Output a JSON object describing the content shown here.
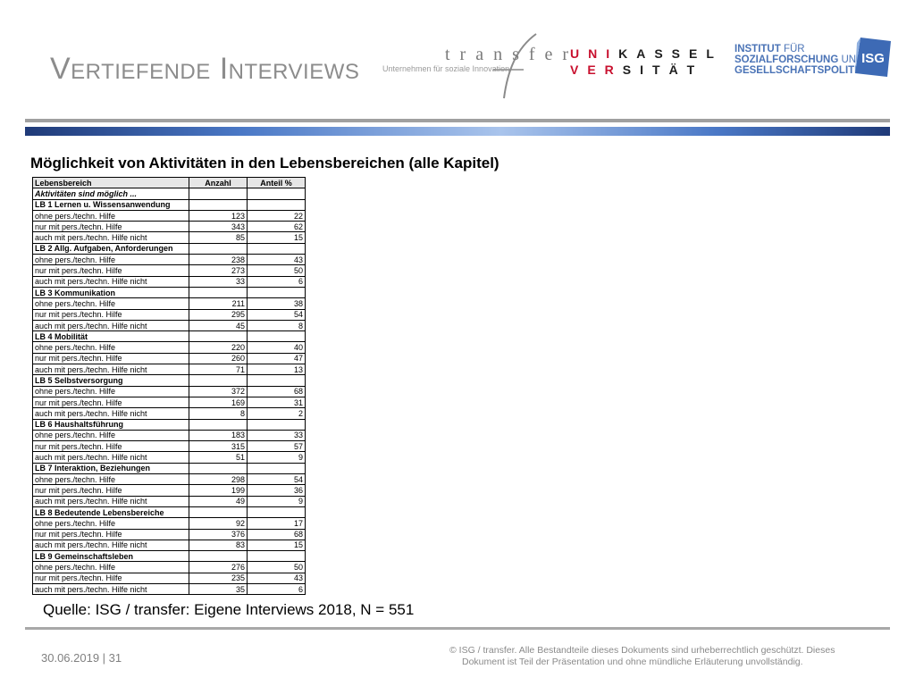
{
  "header": {
    "title": "Vertiefende Interviews",
    "transfer": {
      "word": "transfer",
      "sub": "Unternehmen für soziale Innovation"
    },
    "unikassel": {
      "line1": "UNIKASSEL",
      "line2": "VERSITÄT"
    },
    "institute": {
      "line1_a": "INSTITUT",
      "line1_b": " FÜR",
      "line2": "SOZIALFORSCHUNG",
      "line2_b": " UND",
      "line3": "GESELLSCHAFTSPOLITIK"
    },
    "badge": "ISG",
    "colors": {
      "title_gray": "#8c8c8c",
      "uk_red": "#c8102e",
      "isg_blue": "#4a73b6"
    }
  },
  "subtitle": "Möglichkeit von Aktivitäten in den Lebensbereichen (alle Kapitel)",
  "table": {
    "headers": [
      "Lebensbereich",
      "Anzahl",
      "Anteil %"
    ],
    "intro": "Aktivitäten sind möglich ...",
    "sections": [
      {
        "name": "LB 1 Lernen u. Wissensanwendung",
        "rows": [
          {
            "label": "ohne pers./techn. Hilfe",
            "anzahl": "123",
            "anteil": "22"
          },
          {
            "label": "nur mit pers./techn. Hilfe",
            "anzahl": "343",
            "anteil": "62"
          },
          {
            "label": "auch mit pers./techn. Hilfe nicht",
            "anzahl": "85",
            "anteil": "15"
          }
        ]
      },
      {
        "name": "LB 2 Allg. Aufgaben, Anforderungen",
        "rows": [
          {
            "label": "ohne pers./techn. Hilfe",
            "anzahl": "238",
            "anteil": "43"
          },
          {
            "label": "nur mit pers./techn. Hilfe",
            "anzahl": "273",
            "anteil": "50"
          },
          {
            "label": "auch mit pers./techn. Hilfe nicht",
            "anzahl": "33",
            "anteil": "6"
          }
        ]
      },
      {
        "name": "LB 3 Kommunikation",
        "rows": [
          {
            "label": "ohne pers./techn. Hilfe",
            "anzahl": "211",
            "anteil": "38"
          },
          {
            "label": "nur mit pers./techn. Hilfe",
            "anzahl": "295",
            "anteil": "54"
          },
          {
            "label": "auch mit pers./techn. Hilfe nicht",
            "anzahl": "45",
            "anteil": "8"
          }
        ]
      },
      {
        "name": "LB 4 Mobilität",
        "rows": [
          {
            "label": "ohne pers./techn. Hilfe",
            "anzahl": "220",
            "anteil": "40"
          },
          {
            "label": "nur mit pers./techn. Hilfe",
            "anzahl": "260",
            "anteil": "47"
          },
          {
            "label": "auch mit pers./techn. Hilfe nicht",
            "anzahl": "71",
            "anteil": "13"
          }
        ]
      },
      {
        "name": "LB 5 Selbstversorgung",
        "rows": [
          {
            "label": "ohne pers./techn. Hilfe",
            "anzahl": "372",
            "anteil": "68"
          },
          {
            "label": "nur mit pers./techn. Hilfe",
            "anzahl": "169",
            "anteil": "31"
          },
          {
            "label": "auch mit pers./techn. Hilfe nicht",
            "anzahl": "8",
            "anteil": "2"
          }
        ]
      },
      {
        "name": "LB 6 Haushaltsführung",
        "rows": [
          {
            "label": "ohne pers./techn. Hilfe",
            "anzahl": "183",
            "anteil": "33"
          },
          {
            "label": "nur mit pers./techn. Hilfe",
            "anzahl": "315",
            "anteil": "57"
          },
          {
            "label": "auch mit pers./techn. Hilfe nicht",
            "anzahl": "51",
            "anteil": "9"
          }
        ]
      },
      {
        "name": "LB 7 Interaktion, Beziehungen",
        "rows": [
          {
            "label": "ohne pers./techn. Hilfe",
            "anzahl": "298",
            "anteil": "54"
          },
          {
            "label": "nur mit pers./techn. Hilfe",
            "anzahl": "199",
            "anteil": "36"
          },
          {
            "label": "auch mit pers./techn. Hilfe nicht",
            "anzahl": "49",
            "anteil": "9"
          }
        ]
      },
      {
        "name": "LB 8 Bedeutende Lebensbereiche",
        "rows": [
          {
            "label": "ohne pers./techn. Hilfe",
            "anzahl": "92",
            "anteil": "17"
          },
          {
            "label": "nur mit pers./techn. Hilfe",
            "anzahl": "376",
            "anteil": "68"
          },
          {
            "label": "auch mit pers./techn. Hilfe nicht",
            "anzahl": "83",
            "anteil": "15"
          }
        ]
      },
      {
        "name": "LB 9 Gemeinschaftsleben",
        "rows": [
          {
            "label": "ohne pers./techn. Hilfe",
            "anzahl": "276",
            "anteil": "50"
          },
          {
            "label": "nur mit pers./techn. Hilfe",
            "anzahl": "235",
            "anteil": "43"
          },
          {
            "label": "auch mit pers./techn. Hilfe nicht",
            "anzahl": "35",
            "anteil": "6"
          }
        ]
      }
    ]
  },
  "source": "Quelle: ISG / transfer: Eigene Interviews 2018, N = 551",
  "footer": {
    "date_page": "30.06.2019 | 31",
    "copyright_line1": "©  ISG / transfer. Alle Bestandteile dieses Dokuments sind urheberrechtlich geschützt. Dieses",
    "copyright_line2": "Dokument ist Teil der Präsentation und ohne mündliche Erläuterung unvollständig."
  }
}
